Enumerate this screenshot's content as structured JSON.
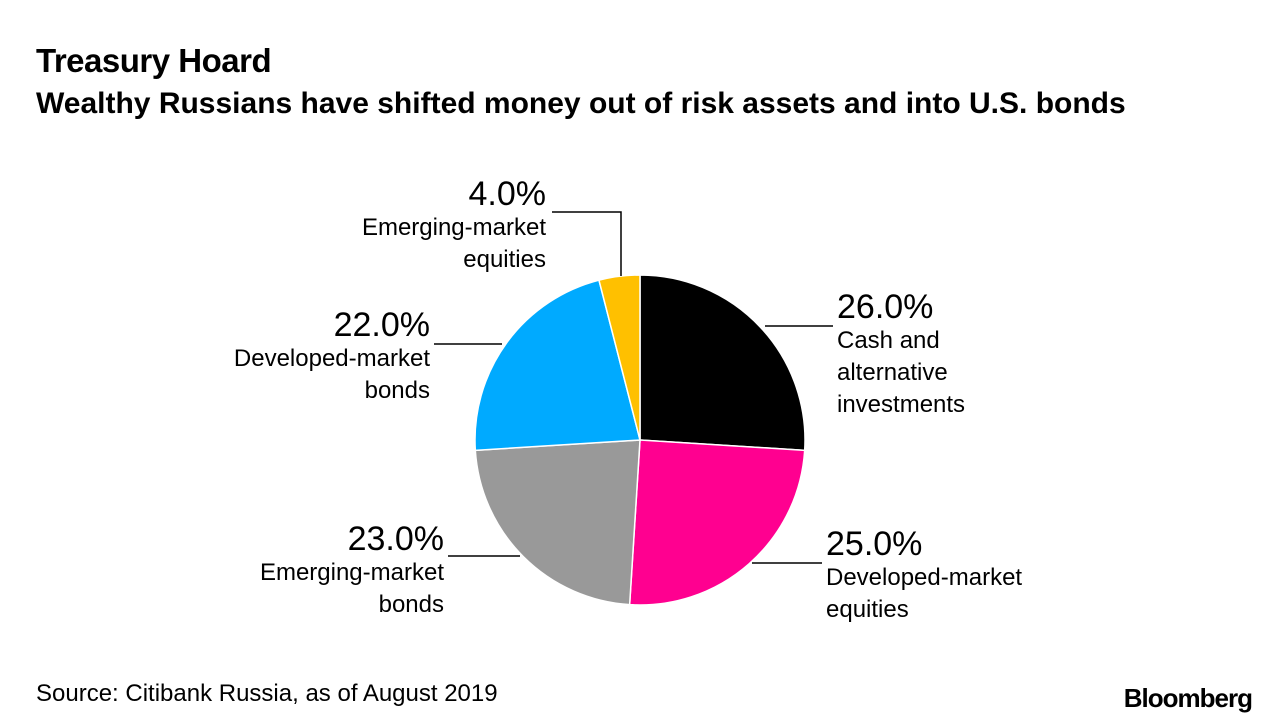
{
  "header": {
    "title": "Treasury Hoard",
    "subtitle": "Wealthy Russians have shifted money out of risk assets and into U.S. bonds"
  },
  "footer": {
    "source": "Source: Citibank Russia, as of August 2019",
    "brand": "Bloomberg"
  },
  "chart_data": {
    "type": "pie",
    "title": "Treasury Hoard",
    "subtitle": "Wealthy Russians have shifted money out of risk assets and into U.S. bonds",
    "slices": [
      {
        "label": "Cash and alternative investments",
        "label_lines": [
          "Cash and",
          "alternative",
          "investments"
        ],
        "value": 26.0,
        "value_label": "26.0%",
        "color": "#000000"
      },
      {
        "label": "Developed-market equities",
        "label_lines": [
          "Developed-market",
          "equities"
        ],
        "value": 25.0,
        "value_label": "25.0%",
        "color": "#ff0090"
      },
      {
        "label": "Emerging-market bonds",
        "label_lines": [
          "Emerging-market",
          "bonds"
        ],
        "value": 23.0,
        "value_label": "23.0%",
        "color": "#999999"
      },
      {
        "label": "Developed-market bonds",
        "label_lines": [
          "Developed-market",
          "bonds"
        ],
        "value": 22.0,
        "value_label": "22.0%",
        "color": "#00aaff"
      },
      {
        "label": "Emerging-market equities",
        "label_lines": [
          "Emerging-market",
          "equities"
        ],
        "value": 4.0,
        "value_label": "4.0%",
        "color": "#ffc000"
      }
    ],
    "start_angle": "12 o'clock",
    "direction": "clockwise"
  }
}
